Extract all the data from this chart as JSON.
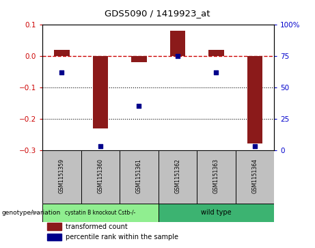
{
  "title": "GDS5090 / 1419923_at",
  "samples": [
    "GSM1151359",
    "GSM1151360",
    "GSM1151361",
    "GSM1151362",
    "GSM1151363",
    "GSM1151364"
  ],
  "bar_values": [
    0.02,
    -0.23,
    -0.02,
    0.08,
    0.02,
    -0.28
  ],
  "percentile_values": [
    62,
    3,
    35,
    75,
    62,
    3
  ],
  "ylim_left": [
    -0.3,
    0.1
  ],
  "ylim_right": [
    0,
    100
  ],
  "bar_color": "#8B1A1A",
  "scatter_color": "#00008B",
  "dashed_line_color": "#CC0000",
  "group1_label": "cystatin B knockout Cstb-/-",
  "group2_label": "wild type",
  "group1_color": "#90EE90",
  "group2_color": "#3CB371",
  "group1_indices": [
    0,
    1,
    2
  ],
  "group2_indices": [
    3,
    4,
    5
  ],
  "legend_bar_label": "transformed count",
  "legend_scatter_label": "percentile rank within the sample",
  "genotype_label": "genotype/variation",
  "cell_color": "#C0C0C0",
  "background_plot": "#FFFFFF",
  "ticklabel_color_left": "#CC0000",
  "ticklabel_color_right": "#0000CC",
  "bar_width": 0.4,
  "scatter_size": 18
}
